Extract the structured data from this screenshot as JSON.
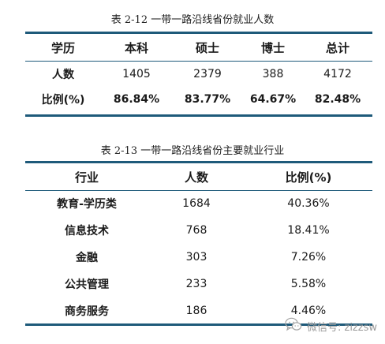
{
  "table1": {
    "caption": "表 2-12   一带一路沿线省份就业人数",
    "header": [
      "学历",
      "本科",
      "硕士",
      "博士",
      "总计"
    ],
    "rows": [
      [
        "人数",
        "1405",
        "2379",
        "388",
        "4172"
      ],
      [
        "比例(%)",
        "86.84%",
        "83.77%",
        "64.67%",
        "82.48%"
      ]
    ]
  },
  "table2": {
    "caption": "表 2-13   一带一路沿线省份主要就业行业",
    "header": [
      "行业",
      "人数",
      "比例(%)"
    ],
    "rows": [
      [
        "教育-学历类",
        "1684",
        "40.36%"
      ],
      [
        "信息技术",
        "768",
        "18.41%"
      ],
      [
        "金融",
        "303",
        "7.26%"
      ],
      [
        "公共管理",
        "233",
        "5.58%"
      ],
      [
        "商务服务",
        "186",
        "4.46%"
      ]
    ]
  },
  "watermark": {
    "text": "微信号: zizzsw",
    "icon": "wechat-logo-icon"
  },
  "colors": {
    "rule": "#1e5a7a",
    "text": "#1a1a1a",
    "watermark": "#9a9a9a"
  }
}
